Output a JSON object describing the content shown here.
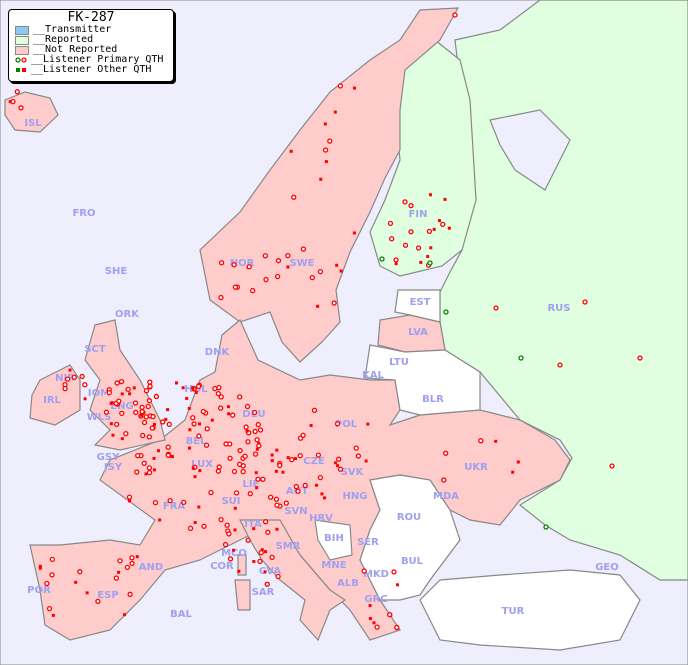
{
  "legend": {
    "title": "FK-287",
    "items": [
      {
        "label": "__Transmitter",
        "color": "#88ccf0"
      },
      {
        "label": "__Reported",
        "color": "#e0ffe0"
      },
      {
        "label": "__Not Reported",
        "color": "#ffcccc"
      },
      {
        "label": "__Listener Primary QTH",
        "marker": "circle"
      },
      {
        "label": "__Listener Other QTH",
        "marker": "square"
      }
    ]
  },
  "colors": {
    "sea": "#eeeefc",
    "reported": "#e0ffe0",
    "not_reported": "#ffcccc",
    "neutral": "#ffffff",
    "listener": "#ff0000",
    "listener_reported": "#008000",
    "border": "#888888"
  },
  "countries": [
    "ISL",
    "FRO",
    "SHE",
    "ORK",
    "SCT",
    "NIR",
    "IRL",
    "IOM",
    "ENG",
    "WLS",
    "GSY",
    "JSY",
    "NOR",
    "SWE",
    "FIN",
    "EST",
    "LVA",
    "LTU",
    "KAL",
    "BLR",
    "RUS",
    "DNK",
    "HOL",
    "BEL",
    "LUX",
    "DEU",
    "POL",
    "CZE",
    "SVK",
    "AUT",
    "HNG",
    "LIE",
    "SUI",
    "FRA",
    "SVN",
    "HRV",
    "ITA",
    "SMR",
    "BIH",
    "SER",
    "MNE",
    "ALB",
    "MKD",
    "GRC",
    "BUL",
    "ROU",
    "MDA",
    "UKR",
    "GEO",
    "TUR",
    "MCO",
    "COR",
    "CVA",
    "SAR",
    "AND",
    "ESP",
    "POR",
    "BAL"
  ]
}
